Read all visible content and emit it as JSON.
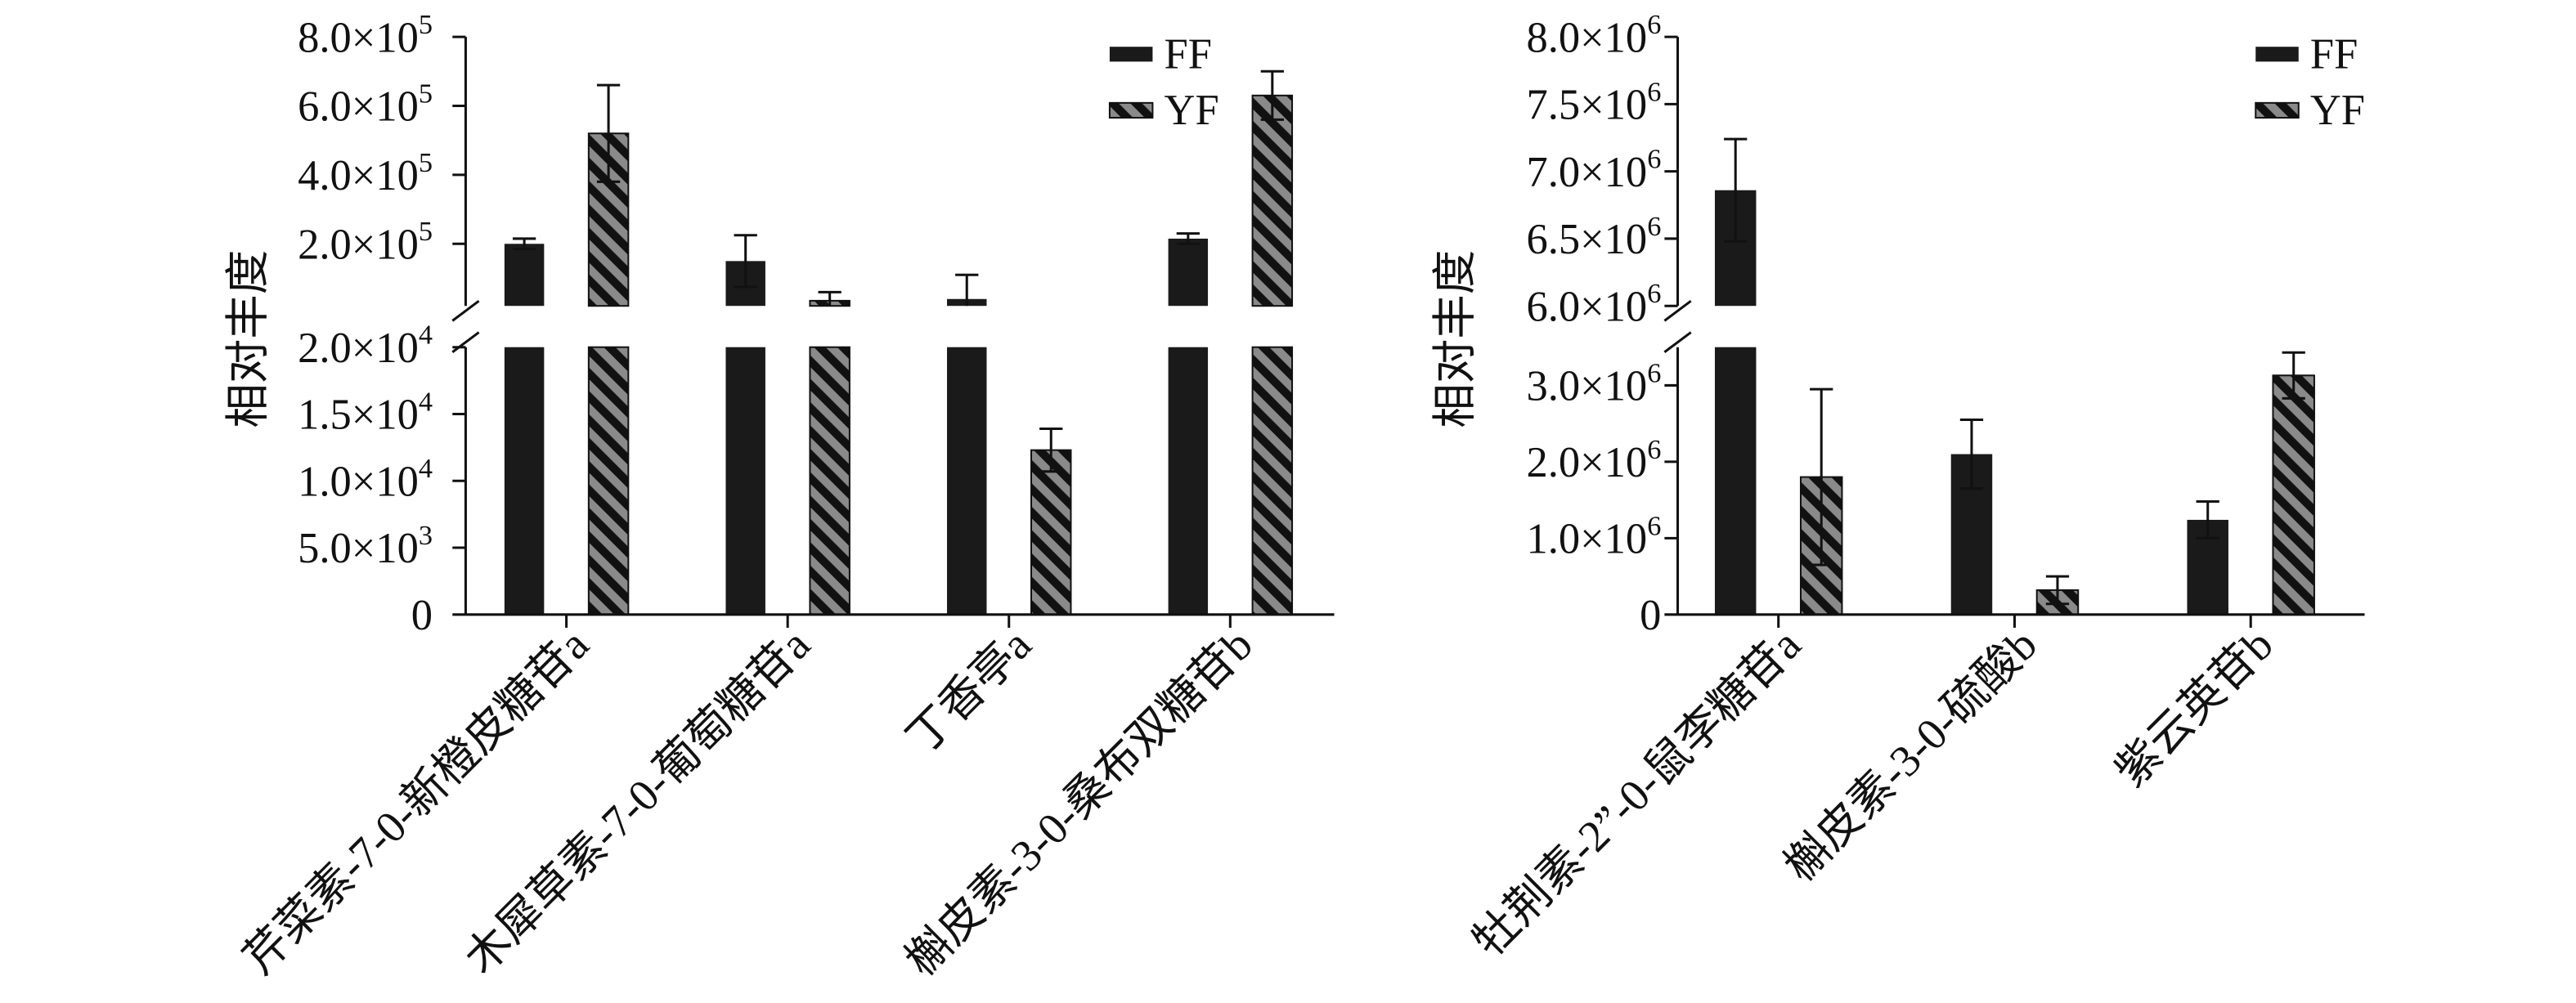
{
  "chart_data": [
    {
      "type": "bar",
      "ylabel": "相对丰度",
      "categories": [
        "芹菜素-7-0-新橙皮糖苷a",
        "木犀草素-7-0-葡萄糖苷a",
        "丁香亭a",
        "槲皮素-3-0-桑布双糖苷b"
      ],
      "series": [
        {
          "name": "FF",
          "color": "#1a1a1a",
          "values": [
            200000,
            150000,
            40000,
            215000
          ],
          "errors": [
            15000,
            75000,
            70000,
            15000
          ]
        },
        {
          "name": "YF",
          "color": "#8a8a8a",
          "hatch_color": "#111111",
          "values": [
            520000,
            35000,
            12300,
            630000
          ],
          "errors": [
            140000,
            25000,
            1600,
            70000
          ]
        }
      ],
      "y_axis_break": true,
      "ylim_lower": [
        0,
        20000
      ],
      "ylim_upper": [
        20000,
        800000
      ],
      "yticks_lower": [
        {
          "value": 0,
          "base": "0"
        },
        {
          "value": 5000,
          "base": "5.0×10",
          "sup": "3"
        },
        {
          "value": 10000,
          "base": "1.0×10",
          "sup": "4"
        },
        {
          "value": 15000,
          "base": "1.5×10",
          "sup": "4"
        },
        {
          "value": 20000,
          "base": "2.0×10",
          "sup": "4"
        }
      ],
      "yticks_upper": [
        {
          "value": 200000,
          "base": "2.0×10",
          "sup": "5"
        },
        {
          "value": 400000,
          "base": "4.0×10",
          "sup": "5"
        },
        {
          "value": 600000,
          "base": "6.0×10",
          "sup": "5"
        },
        {
          "value": 800000,
          "base": "8.0×10",
          "sup": "5"
        }
      ],
      "legend": "top-right",
      "grid": false
    },
    {
      "type": "bar",
      "ylabel": "相对丰度",
      "categories": [
        "牡荆素-2”-0-鼠李糖苷a",
        "槲皮素-3-0-硫酸b",
        "紫云英苷b"
      ],
      "series": [
        {
          "name": "FF",
          "color": "#1a1a1a",
          "values": [
            6860000,
            2100000,
            1240000
          ],
          "errors": [
            380000,
            450000,
            240000
          ]
        },
        {
          "name": "YF",
          "color": "#8a8a8a",
          "hatch_color": "#111111",
          "values": [
            1800000,
            320000,
            3130000
          ],
          "errors": [
            1150000,
            180000,
            300000
          ]
        }
      ],
      "y_axis_break": true,
      "ylim_lower": [
        0,
        3500000
      ],
      "ylim_upper": [
        6000000,
        8000000
      ],
      "yticks_lower": [
        {
          "value": 0,
          "base": "0"
        },
        {
          "value": 1000000,
          "base": "1.0×10",
          "sup": "6"
        },
        {
          "value": 2000000,
          "base": "2.0×10",
          "sup": "6"
        },
        {
          "value": 3000000,
          "base": "3.0×10",
          "sup": "6"
        }
      ],
      "yticks_upper": [
        {
          "value": 6000000,
          "base": "6.0×10",
          "sup": "6"
        },
        {
          "value": 6500000,
          "base": "6.5×10",
          "sup": "6"
        },
        {
          "value": 7000000,
          "base": "7.0×10",
          "sup": "6"
        },
        {
          "value": 7500000,
          "base": "7.5×10",
          "sup": "6"
        },
        {
          "value": 8000000,
          "base": "8.0×10",
          "sup": "6"
        }
      ],
      "legend": "top-right",
      "grid": false
    }
  ]
}
